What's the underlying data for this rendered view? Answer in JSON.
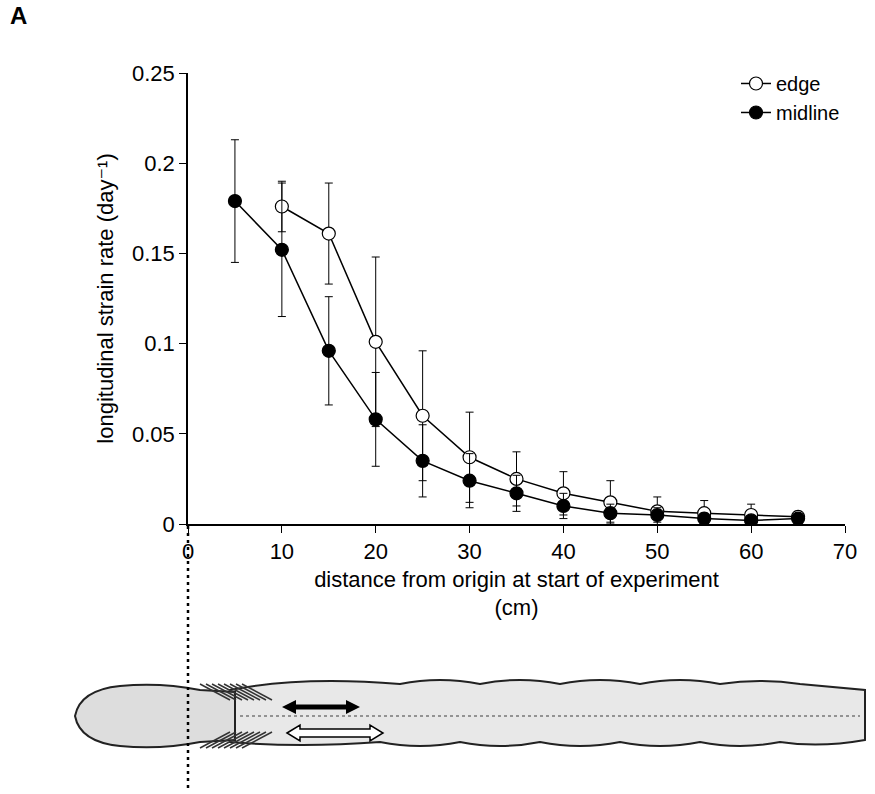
{
  "chart_data": {
    "type": "line",
    "panel": "A",
    "x_label": "distance from origin at start of experiment (cm)",
    "y_label": "longitudinal strain rate (day⁻¹)",
    "xlim": [
      0,
      70
    ],
    "xticks": [
      0,
      10,
      20,
      30,
      40,
      50,
      60,
      70
    ],
    "ylim": [
      0,
      0.25
    ],
    "yticks": [
      0,
      0.05,
      0.1,
      0.15,
      0.2,
      0.25
    ],
    "grid": false,
    "legend": "top right",
    "series": [
      {
        "name": "edge",
        "color": "#000000",
        "marker": "circle-open",
        "line_style": "solid",
        "x": [
          10,
          15,
          20,
          25,
          30,
          35,
          40,
          45,
          50,
          55,
          60,
          65
        ],
        "values": [
          0.176,
          0.161,
          0.101,
          0.06,
          0.037,
          0.025,
          0.017,
          0.012,
          0.007,
          0.006,
          0.005,
          0.004
        ],
        "error": [
          0.014,
          0.028,
          0.047,
          0.036,
          0.025,
          0.015,
          0.012,
          0.012,
          0.008,
          0.007,
          0.006,
          0.003
        ]
      },
      {
        "name": "midline",
        "color": "#000000",
        "marker": "circle",
        "line_style": "solid",
        "x": [
          5,
          10,
          15,
          20,
          25,
          30,
          35,
          40,
          45,
          50,
          55,
          60,
          65
        ],
        "values": [
          0.179,
          0.152,
          0.096,
          0.058,
          0.035,
          0.024,
          0.017,
          0.01,
          0.006,
          0.005,
          0.003,
          0.002,
          0.003
        ],
        "error": [
          0.034,
          0.037,
          0.03,
          0.026,
          0.02,
          0.015,
          0.01,
          0.007,
          0.005,
          0.004,
          0.003,
          0.002,
          0.002
        ]
      }
    ]
  }
}
